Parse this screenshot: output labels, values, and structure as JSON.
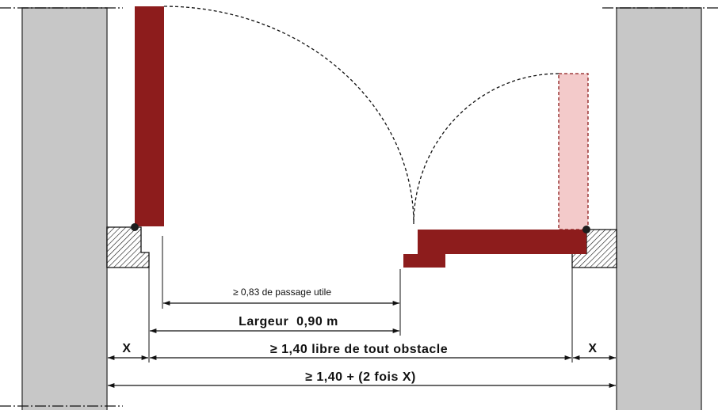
{
  "labels": {
    "passage_utile": "≥ 0,83 de passage utile",
    "largeur": "Largeur  0,90 m",
    "x_left": "X",
    "libre": "≥ 1,40 libre de tout obstacle",
    "x_right": "X",
    "total": "≥ 1,40 + (2 fois X)"
  },
  "colors": {
    "wall": "#c7c7c7",
    "door": "#8d1c1c",
    "door_open": "#f3caca",
    "hinge": "#1e1e1e"
  }
}
